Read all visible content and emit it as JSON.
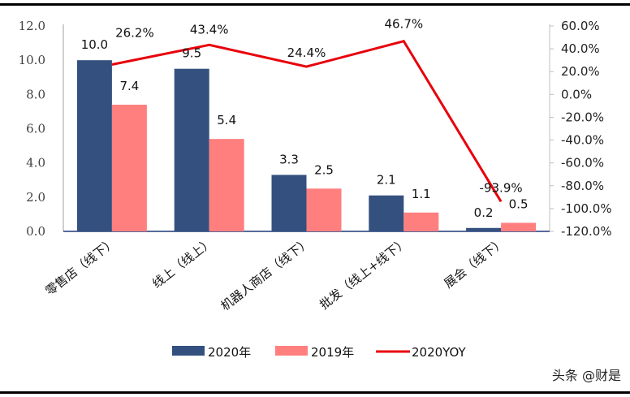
{
  "chart_data": {
    "type": "bar",
    "categories": [
      "零售店（线下）",
      "线上（线上）",
      "机器人商店（线下）",
      "批发（线上+线下）",
      "展会（线下）"
    ],
    "series": [
      {
        "name": "2020年",
        "type": "bar",
        "axis": "left",
        "color": "#34507E",
        "values": [
          10.0,
          9.5,
          3.3,
          2.1,
          0.2
        ],
        "labels": [
          "10.0",
          "9.5",
          "3.3",
          "2.1",
          "0.2"
        ]
      },
      {
        "name": "2019年",
        "type": "bar",
        "axis": "left",
        "color": "#FF7F7F",
        "values": [
          7.4,
          5.4,
          2.5,
          1.1,
          0.5
        ],
        "labels": [
          "7.4",
          "5.4",
          "2.5",
          "1.1",
          "0.5"
        ]
      },
      {
        "name": "2020YOY",
        "type": "line",
        "axis": "right",
        "color": "#E8000B",
        "values": [
          26.2,
          43.4,
          24.4,
          46.7,
          -93.9
        ],
        "labels": [
          "26.2%",
          "43.4%",
          "24.4%",
          "46.7%",
          "-93.9%"
        ]
      }
    ],
    "left_axis": {
      "ylim": [
        0,
        12
      ],
      "ticks": [
        "0.0",
        "2.0",
        "4.0",
        "6.0",
        "8.0",
        "10.0",
        "12.0"
      ]
    },
    "right_axis": {
      "ylim": [
        -120,
        60
      ],
      "ticks": [
        "-120.0%",
        "-100.0%",
        "-80.0%",
        "-60.0%",
        "-40.0%",
        "-20.0%",
        "0.0%",
        "20.0%",
        "40.0%",
        "60.0%"
      ]
    },
    "grid": false,
    "legend": "bottom"
  },
  "watermark": "头条 @财是"
}
